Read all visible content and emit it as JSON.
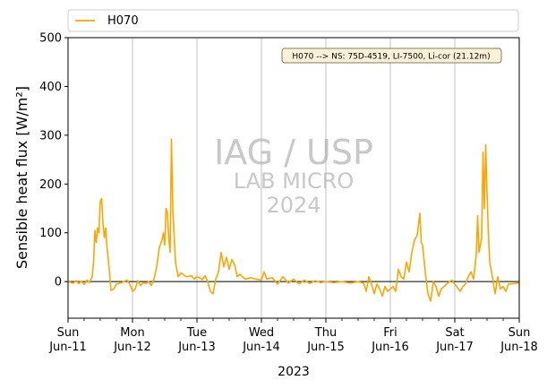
{
  "chart_data": {
    "type": "line",
    "title": "",
    "xlabel": "2023",
    "ylabel": "Sensible heat flux [W/m²]",
    "ylim": [
      -75,
      500
    ],
    "yticks": [
      0,
      100,
      200,
      300,
      400,
      500
    ],
    "xlim": [
      "2023-06-11",
      "2023-06-18"
    ],
    "xticks": [
      {
        "day": "Sun",
        "date": "Jun-11"
      },
      {
        "day": "Mon",
        "date": "Jun-12"
      },
      {
        "day": "Tue",
        "date": "Jun-13"
      },
      {
        "day": "Wed",
        "date": "Jun-14"
      },
      {
        "day": "Thu",
        "date": "Jun-15"
      },
      {
        "day": "Fri",
        "date": "Jun-16"
      },
      {
        "day": "Sat",
        "date": "Jun-17"
      },
      {
        "day": "Sun",
        "date": "Jun-18"
      }
    ],
    "grid": "vertical major",
    "zero_line": true,
    "legend": {
      "placement": "top",
      "entries": [
        "H070"
      ]
    },
    "annotation": "H070 --> NS: 75D-4519, LI-7500, Li-cor (21.12m)",
    "watermark": [
      "IAG / USP",
      "LAB MICRO",
      "2024"
    ],
    "series": [
      {
        "name": "H070",
        "color": "#ffa500",
        "points": [
          [
            "2023-06-11 00:00",
            0
          ],
          [
            "2023-06-11 02:00",
            -3
          ],
          [
            "2023-06-11 03:00",
            2
          ],
          [
            "2023-06-11 04:00",
            -4
          ],
          [
            "2023-06-11 05:00",
            1
          ],
          [
            "2023-06-11 06:00",
            -6
          ],
          [
            "2023-06-11 07:00",
            3
          ],
          [
            "2023-06-11 08:00",
            -2
          ],
          [
            "2023-06-11 09:00",
            10
          ],
          [
            "2023-06-11 09:30",
            40
          ],
          [
            "2023-06-11 10:00",
            105
          ],
          [
            "2023-06-11 10:30",
            80
          ],
          [
            "2023-06-11 11:00",
            110
          ],
          [
            "2023-06-11 11:30",
            100
          ],
          [
            "2023-06-11 12:00",
            165
          ],
          [
            "2023-06-11 12:30",
            170
          ],
          [
            "2023-06-11 13:00",
            120
          ],
          [
            "2023-06-11 13:30",
            90
          ],
          [
            "2023-06-11 14:00",
            110
          ],
          [
            "2023-06-11 14:30",
            70
          ],
          [
            "2023-06-11 15:00",
            45
          ],
          [
            "2023-06-11 16:00",
            -18
          ],
          [
            "2023-06-11 17:00",
            -15
          ],
          [
            "2023-06-11 18:00",
            -5
          ],
          [
            "2023-06-11 20:00",
            -2
          ],
          [
            "2023-06-11 22:00",
            3
          ],
          [
            "2023-06-11 23:00",
            -5
          ],
          [
            "2023-06-12 00:00",
            -20
          ],
          [
            "2023-06-12 01:00",
            -15
          ],
          [
            "2023-06-12 02:00",
            2
          ],
          [
            "2023-06-12 03:00",
            -8
          ],
          [
            "2023-06-12 04:00",
            -2
          ],
          [
            "2023-06-12 05:00",
            -4
          ],
          [
            "2023-06-12 06:00",
            0
          ],
          [
            "2023-06-12 07:00",
            -8
          ],
          [
            "2023-06-12 08:00",
            5
          ],
          [
            "2023-06-12 09:00",
            30
          ],
          [
            "2023-06-12 10:00",
            70
          ],
          [
            "2023-06-12 11:00",
            85
          ],
          [
            "2023-06-12 11:30",
            100
          ],
          [
            "2023-06-12 12:00",
            75
          ],
          [
            "2023-06-12 12:30",
            150
          ],
          [
            "2023-06-12 13:00",
            140
          ],
          [
            "2023-06-12 13:30",
            90
          ],
          [
            "2023-06-12 14:00",
            60
          ],
          [
            "2023-06-12 14:30",
            292
          ],
          [
            "2023-06-12 15:00",
            150
          ],
          [
            "2023-06-12 16:00",
            40
          ],
          [
            "2023-06-12 17:00",
            10
          ],
          [
            "2023-06-12 18:00",
            18
          ],
          [
            "2023-06-12 20:00",
            10
          ],
          [
            "2023-06-12 22:00",
            12
          ],
          [
            "2023-06-12 23:00",
            5
          ],
          [
            "2023-06-13 00:00",
            10
          ],
          [
            "2023-06-13 01:00",
            8
          ],
          [
            "2023-06-13 02:00",
            4
          ],
          [
            "2023-06-13 03:00",
            12
          ],
          [
            "2023-06-13 04:00",
            0
          ],
          [
            "2023-06-13 05:00",
            -20
          ],
          [
            "2023-06-13 06:00",
            -25
          ],
          [
            "2023-06-13 07:00",
            5
          ],
          [
            "2023-06-13 08:00",
            20
          ],
          [
            "2023-06-13 09:00",
            60
          ],
          [
            "2023-06-13 10:00",
            30
          ],
          [
            "2023-06-13 11:00",
            50
          ],
          [
            "2023-06-13 12:00",
            25
          ],
          [
            "2023-06-13 13:00",
            45
          ],
          [
            "2023-06-13 14:00",
            35
          ],
          [
            "2023-06-13 15:00",
            10
          ],
          [
            "2023-06-13 16:00",
            15
          ],
          [
            "2023-06-13 18:00",
            5
          ],
          [
            "2023-06-13 20:00",
            8
          ],
          [
            "2023-06-13 22:00",
            5
          ],
          [
            "2023-06-14 00:00",
            3
          ],
          [
            "2023-06-14 01:00",
            20
          ],
          [
            "2023-06-14 02:00",
            5
          ],
          [
            "2023-06-14 04:00",
            8
          ],
          [
            "2023-06-14 06:00",
            -5
          ],
          [
            "2023-06-14 08:00",
            10
          ],
          [
            "2023-06-14 10:00",
            -3
          ],
          [
            "2023-06-14 12:00",
            5
          ],
          [
            "2023-06-14 14:00",
            -5
          ],
          [
            "2023-06-14 16:00",
            3
          ],
          [
            "2023-06-14 18:00",
            -4
          ],
          [
            "2023-06-14 20:00",
            2
          ],
          [
            "2023-06-14 22:00",
            -2
          ],
          [
            "2023-06-15 00:00",
            0
          ],
          [
            "2023-06-15 03:00",
            -2
          ],
          [
            "2023-06-15 06:00",
            0
          ],
          [
            "2023-06-15 09:00",
            -3
          ],
          [
            "2023-06-15 12:00",
            0
          ],
          [
            "2023-06-15 14:00",
            -3
          ],
          [
            "2023-06-15 15:00",
            -20
          ],
          [
            "2023-06-15 16:00",
            10
          ],
          [
            "2023-06-15 17:00",
            -5
          ],
          [
            "2023-06-15 18:00",
            -25
          ],
          [
            "2023-06-15 19:00",
            -5
          ],
          [
            "2023-06-15 20:00",
            -15
          ],
          [
            "2023-06-15 21:00",
            -30
          ],
          [
            "2023-06-15 22:00",
            -10
          ],
          [
            "2023-06-15 23:00",
            -20
          ],
          [
            "2023-06-16 00:00",
            -15
          ],
          [
            "2023-06-16 01:00",
            -10
          ],
          [
            "2023-06-16 02:00",
            -20
          ],
          [
            "2023-06-16 03:00",
            25
          ],
          [
            "2023-06-16 04:00",
            10
          ],
          [
            "2023-06-16 05:00",
            5
          ],
          [
            "2023-06-16 06:00",
            40
          ],
          [
            "2023-06-16 07:00",
            20
          ],
          [
            "2023-06-16 08:00",
            60
          ],
          [
            "2023-06-16 09:00",
            85
          ],
          [
            "2023-06-16 10:00",
            95
          ],
          [
            "2023-06-16 11:00",
            140
          ],
          [
            "2023-06-16 11:30",
            80
          ],
          [
            "2023-06-16 12:00",
            75
          ],
          [
            "2023-06-16 13:00",
            20
          ],
          [
            "2023-06-16 14:00",
            -25
          ],
          [
            "2023-06-16 15:00",
            -40
          ],
          [
            "2023-06-16 16:00",
            0
          ],
          [
            "2023-06-16 17:00",
            -10
          ],
          [
            "2023-06-16 18:00",
            -30
          ],
          [
            "2023-06-16 19:00",
            -15
          ],
          [
            "2023-06-16 20:00",
            -10
          ],
          [
            "2023-06-16 22:00",
            0
          ],
          [
            "2023-06-16 23:00",
            3
          ],
          [
            "2023-06-17 00:00",
            -5
          ],
          [
            "2023-06-17 02:00",
            -20
          ],
          [
            "2023-06-17 03:00",
            -10
          ],
          [
            "2023-06-17 04:00",
            -5
          ],
          [
            "2023-06-17 05:00",
            10
          ],
          [
            "2023-06-17 06:00",
            20
          ],
          [
            "2023-06-17 07:00",
            5
          ],
          [
            "2023-06-17 08:00",
            55
          ],
          [
            "2023-06-17 08:30",
            135
          ],
          [
            "2023-06-17 09:00",
            60
          ],
          [
            "2023-06-17 10:00",
            90
          ],
          [
            "2023-06-17 10:30",
            265
          ],
          [
            "2023-06-17 11:00",
            150
          ],
          [
            "2023-06-17 11:30",
            280
          ],
          [
            "2023-06-17 12:00",
            180
          ],
          [
            "2023-06-17 12:30",
            100
          ],
          [
            "2023-06-17 13:00",
            40
          ],
          [
            "2023-06-17 14:00",
            10
          ],
          [
            "2023-06-17 15:00",
            -25
          ],
          [
            "2023-06-17 16:00",
            10
          ],
          [
            "2023-06-17 17:00",
            -15
          ],
          [
            "2023-06-17 18:00",
            -10
          ],
          [
            "2023-06-17 19:00",
            -20
          ],
          [
            "2023-06-17 20:00",
            -5
          ],
          [
            "2023-06-17 22:00",
            -4
          ],
          [
            "2023-06-18 00:00",
            -3
          ]
        ]
      }
    ]
  }
}
